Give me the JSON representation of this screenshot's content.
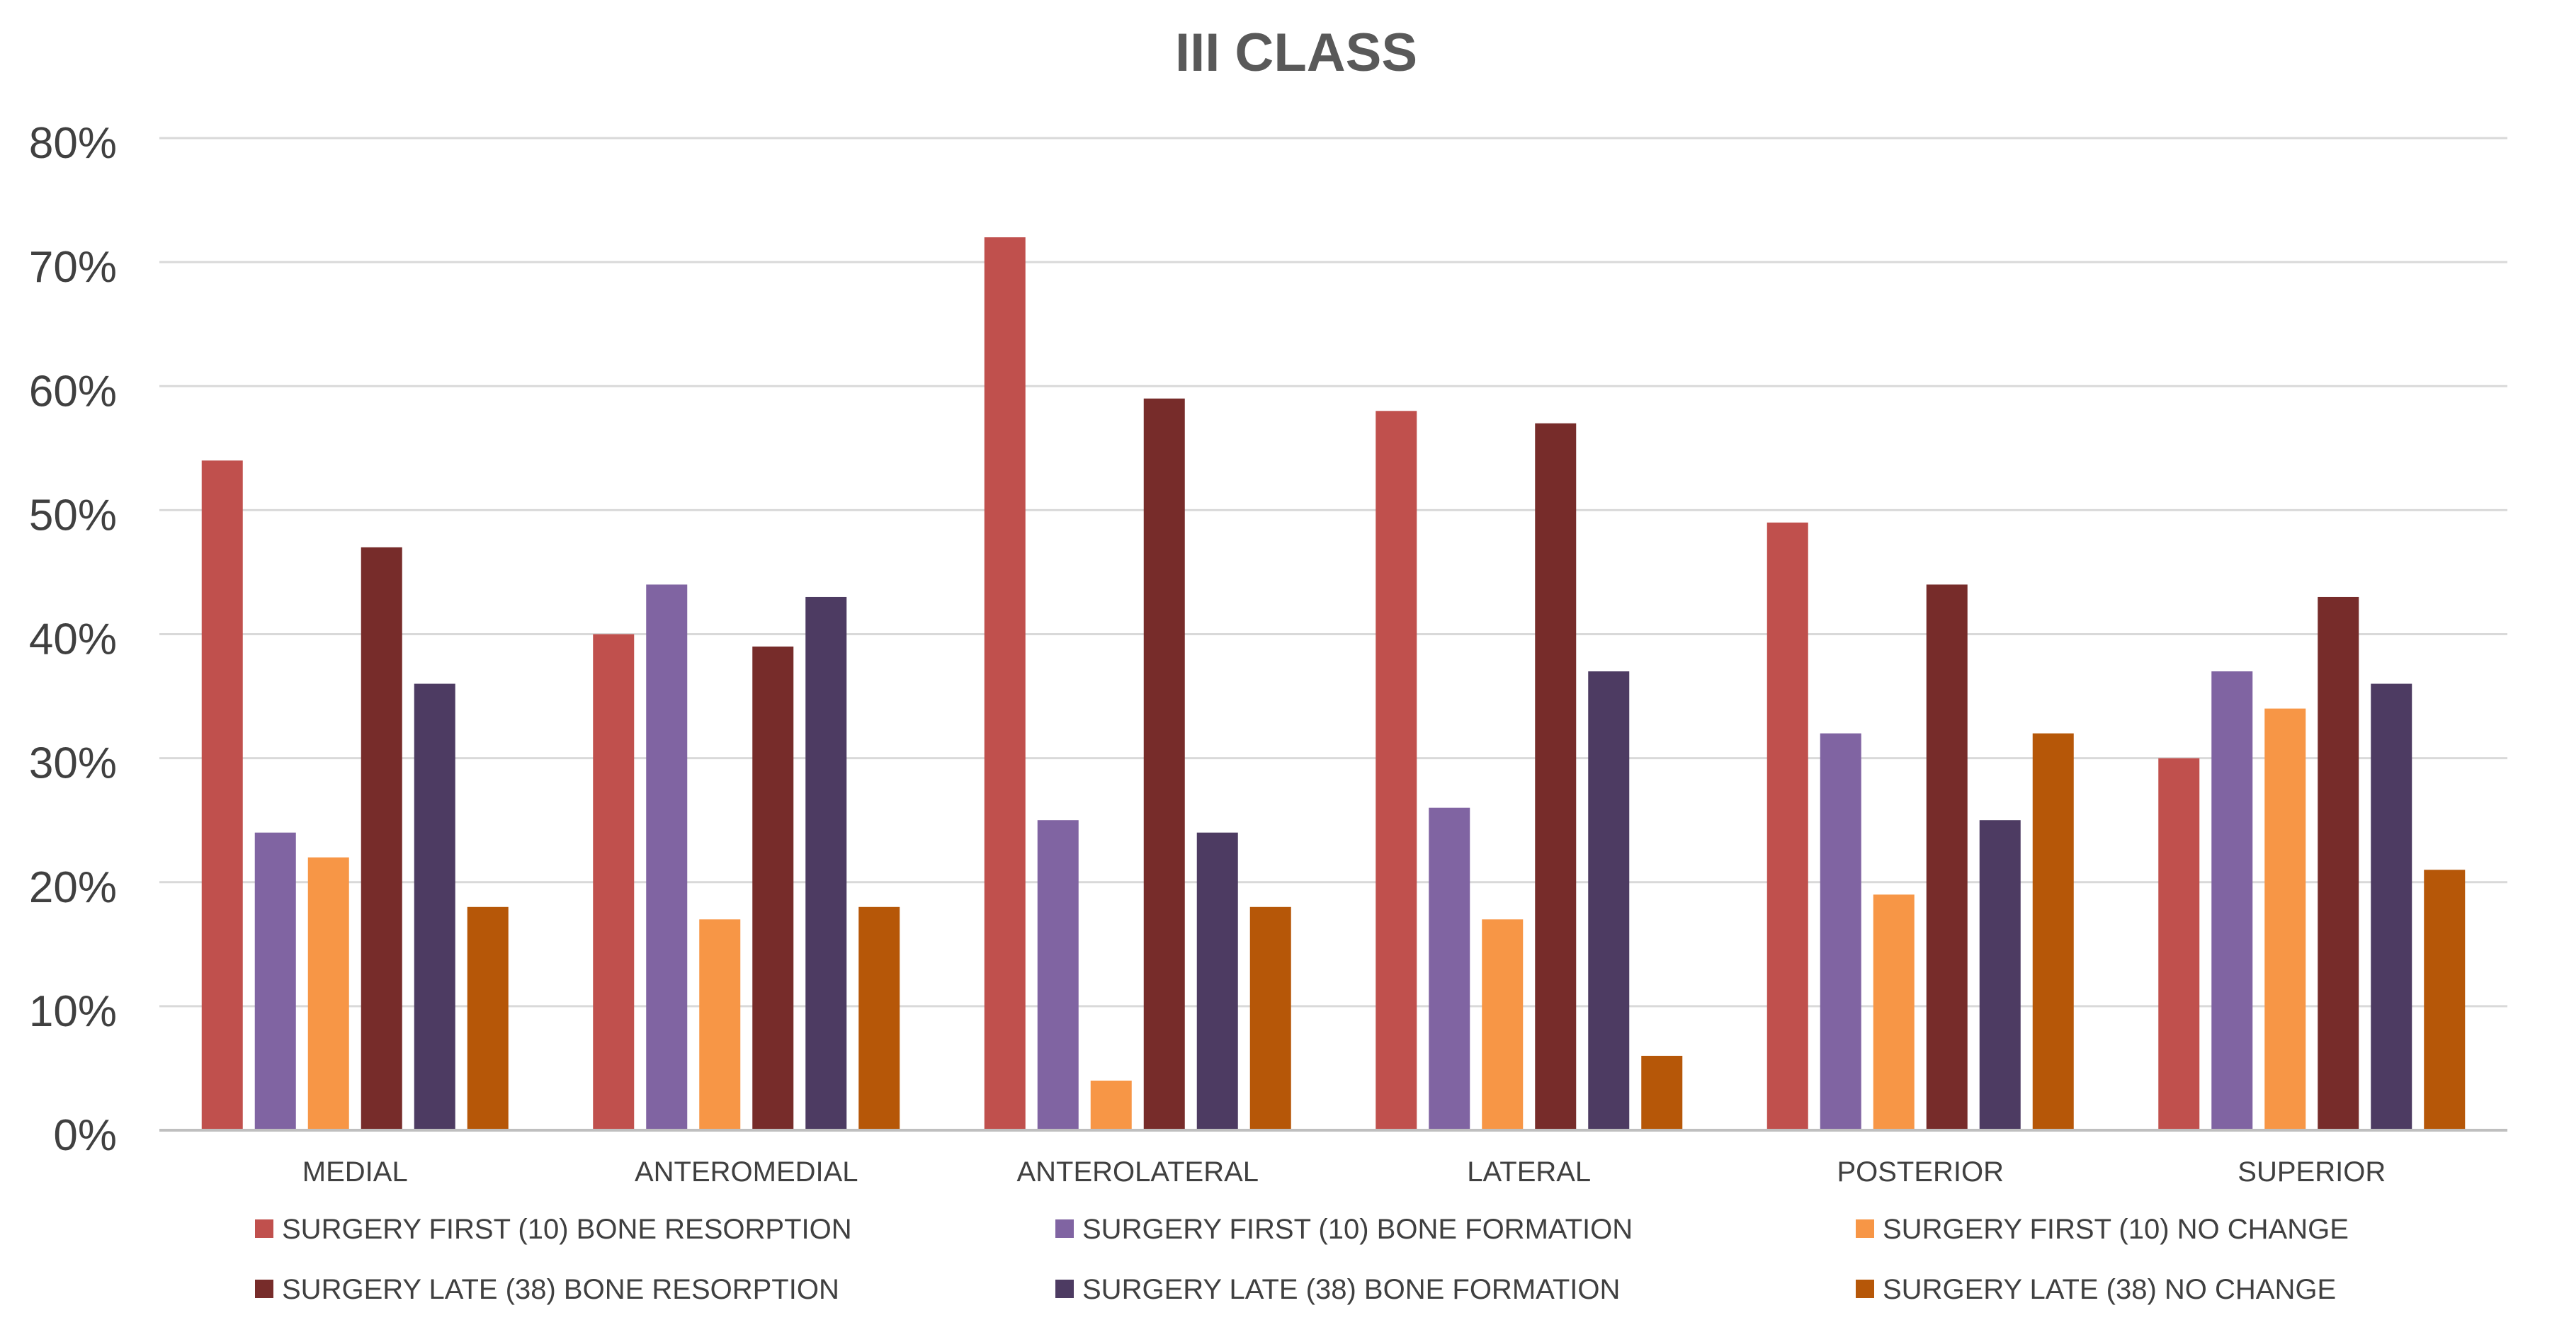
{
  "chart_data": {
    "type": "bar",
    "title": "III CLASS",
    "xlabel": "",
    "ylabel": "",
    "ylim": [
      0,
      80
    ],
    "yticks": [
      "0%",
      "10%",
      "20%",
      "30%",
      "40%",
      "50%",
      "60%",
      "70%",
      "80%"
    ],
    "categories": [
      "MEDIAL",
      "ANTEROMEDIAL",
      "ANTEROLATERAL",
      "LATERAL",
      "POSTERIOR",
      "SUPERIOR"
    ],
    "series": [
      {
        "name": "SURGERY FIRST (10) BONE RESORPTION",
        "color": "#c0504d",
        "values": [
          54,
          40,
          72,
          58,
          49,
          30
        ]
      },
      {
        "name": "SURGERY FIRST (10) BONE FORMATION",
        "color": "#8064a2",
        "values": [
          24,
          44,
          25,
          26,
          32,
          37
        ]
      },
      {
        "name": "SURGERY FIRST (10) NO CHANGE",
        "color": "#f79646",
        "values": [
          22,
          17,
          4,
          17,
          19,
          34
        ]
      },
      {
        "name": "SURGERY LATE (38) BONE RESORPTION",
        "color": "#772c2a",
        "values": [
          47,
          39,
          59,
          57,
          44,
          43
        ]
      },
      {
        "name": "SURGERY LATE (38) BONE FORMATION",
        "color": "#4d3b62",
        "values": [
          36,
          43,
          24,
          37,
          25,
          36
        ]
      },
      {
        "name": "SURGERY LATE (38) NO CHANGE",
        "color": "#b65708",
        "values": [
          18,
          18,
          18,
          6,
          32,
          21
        ]
      }
    ],
    "legend_position": "bottom"
  }
}
